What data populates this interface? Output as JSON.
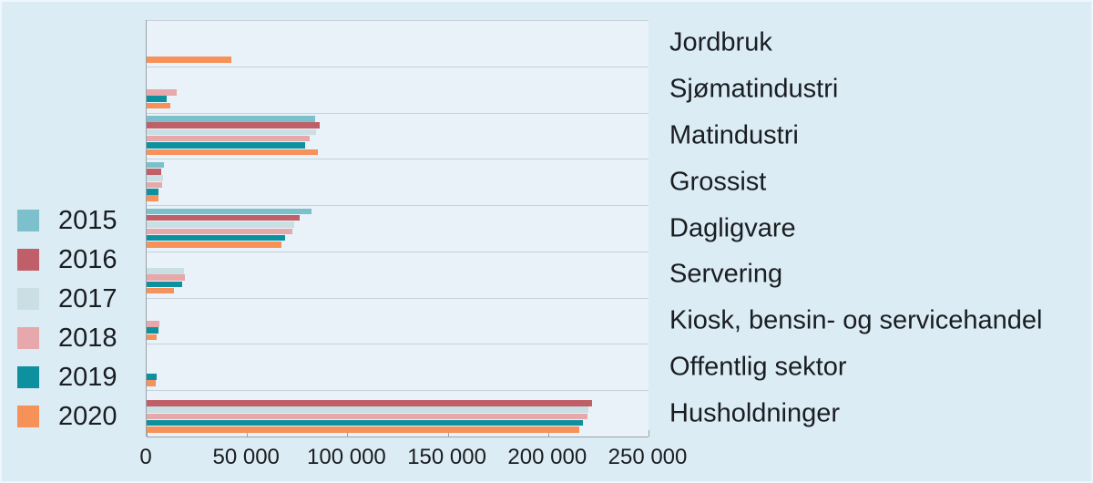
{
  "chart_data": {
    "type": "bar",
    "orientation": "horizontal",
    "title": "",
    "xlabel": "",
    "ylabel": "",
    "xlim": [
      0,
      250000
    ],
    "x_tick_labels": [
      "0",
      "50 000",
      "100 000",
      "150 000",
      "200 000",
      "250 000"
    ],
    "grid": "horizontal category separators",
    "legend_position": "left",
    "categories": [
      "Jordbruk",
      "Sjømatindustri",
      "Matindustri",
      "Grossist",
      "Dagligvare",
      "Servering",
      "Kiosk, bensin- og servicehandel",
      "Offentlig sektor",
      "Husholdninger"
    ],
    "series": [
      {
        "name": "2015",
        "color": "#7bc0cb",
        "values": [
          null,
          null,
          84000,
          8600,
          82000,
          null,
          null,
          null,
          null
        ]
      },
      {
        "name": "2016",
        "color": "#c05f67",
        "values": [
          null,
          null,
          86000,
          7300,
          76000,
          null,
          null,
          null,
          222000
        ]
      },
      {
        "name": "2017",
        "color": "#c9dfe4",
        "values": [
          null,
          null,
          84500,
          8200,
          73500,
          18500,
          null,
          null,
          220000
        ]
      },
      {
        "name": "2018",
        "color": "#e6a8ab",
        "values": [
          null,
          15000,
          81000,
          7700,
          72500,
          19000,
          6400,
          null,
          219500
        ]
      },
      {
        "name": "2019",
        "color": "#0e919e",
        "values": [
          null,
          10000,
          79000,
          5900,
          69000,
          17500,
          5900,
          5000,
          217500
        ]
      },
      {
        "name": "2020",
        "color": "#f6915a",
        "values": [
          42000,
          12000,
          85500,
          6000,
          67000,
          13500,
          5000,
          4500,
          215500
        ]
      }
    ]
  },
  "colors": {
    "figure_background": "#dbecf5",
    "plot_background": "#e8f2f8",
    "gridline": "#c7d3d9",
    "axis": "#98a2a8",
    "text": "#1a1d21"
  }
}
